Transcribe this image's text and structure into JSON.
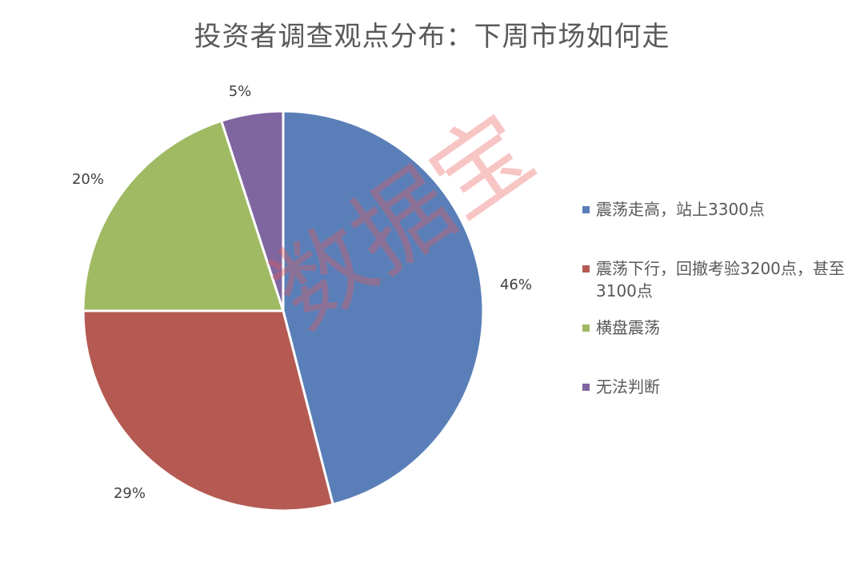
{
  "chart_data": {
    "type": "pie",
    "title": "投资者调查观点分布：下周市场如何走",
    "categories": [
      "震荡走高，站上3300点",
      "震荡下行，回撤考验3200点，甚至3100点",
      "横盘震荡",
      "无法判断"
    ],
    "values": [
      46,
      29,
      20,
      5
    ],
    "data_labels": [
      "46%",
      "29%",
      "20%",
      "5%"
    ],
    "colors": [
      "#5A7FB8",
      "#B55A52",
      "#9FBA63",
      "#7F66A0"
    ],
    "start_angle": "12 o'clock",
    "direction": "clockwise",
    "legend_position": "right"
  },
  "watermark": "数据宝"
}
